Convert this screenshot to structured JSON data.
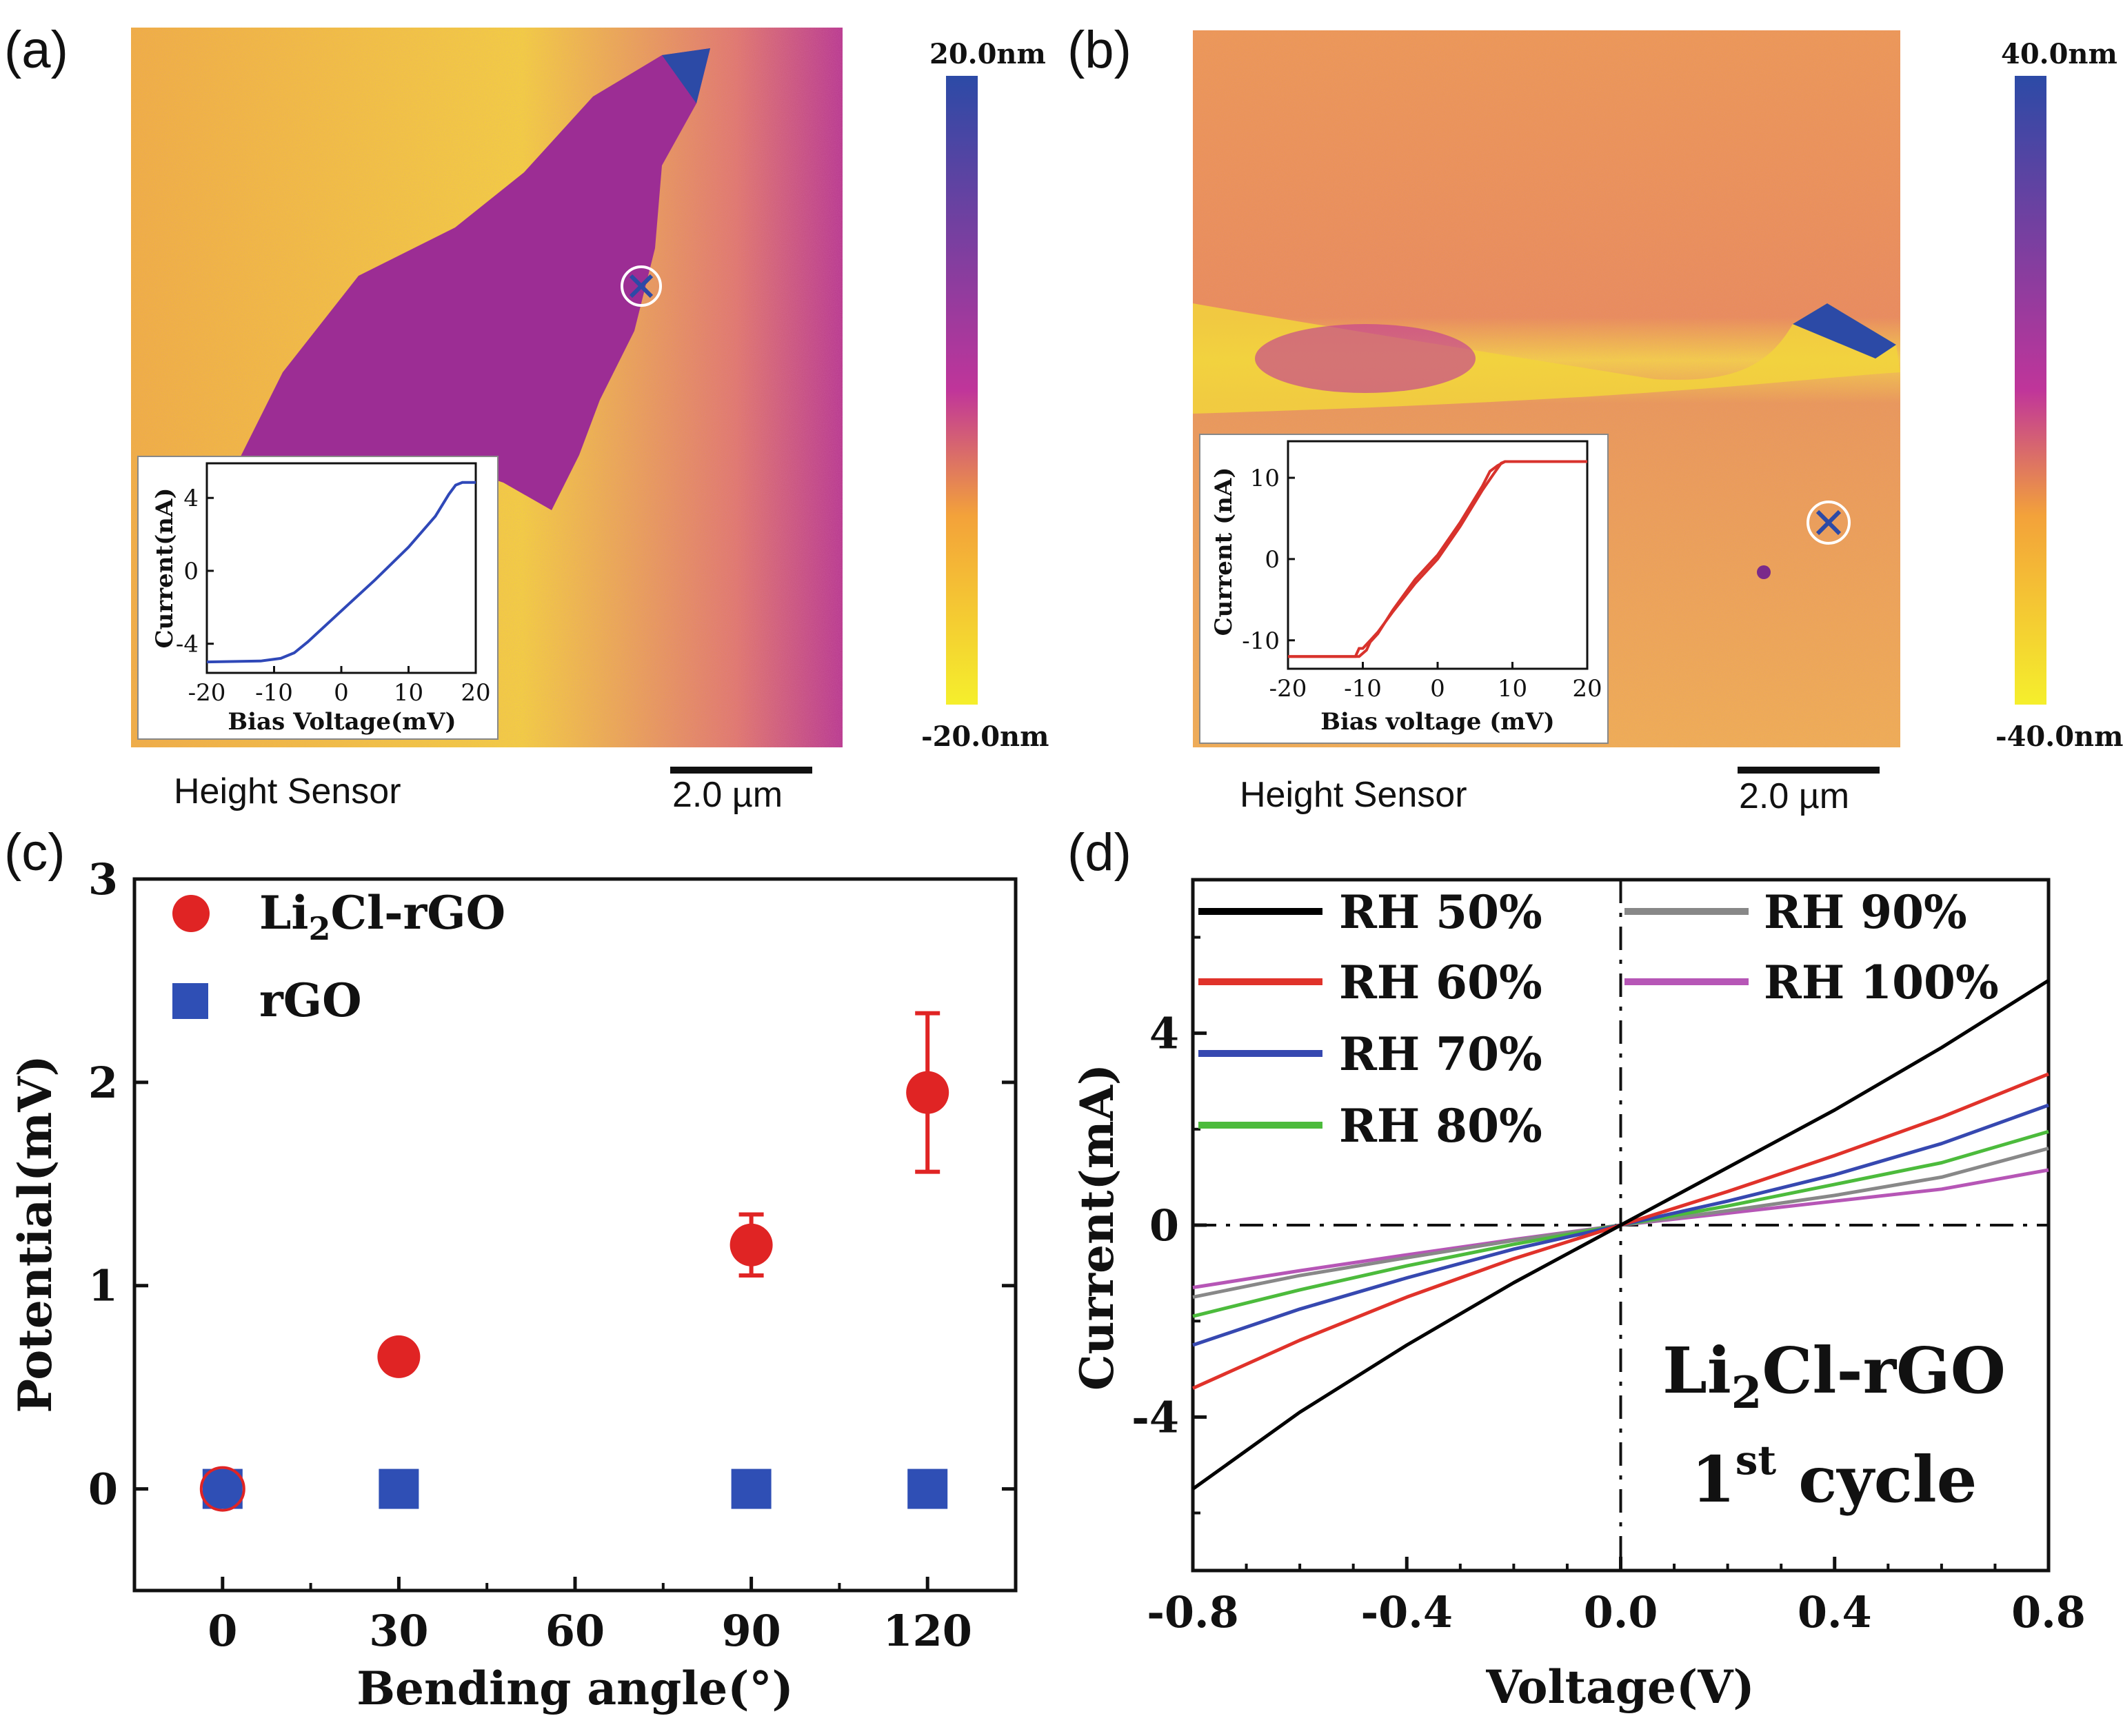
{
  "panels": {
    "a": {
      "label": "(a)",
      "caption": "Height Sensor",
      "scale_bar": "2.0 µm",
      "colorbar": {
        "top": "20.0nm",
        "bottom": "-20.0nm",
        "colors": [
          "#2c4aa6",
          "#c0359a",
          "#f3a23a",
          "#f5ef2c"
        ]
      },
      "inset": {
        "xlabel": "Bias Voltage(mV)",
        "ylabel": "Current(nA)",
        "xticks": [
          "-20",
          "-10",
          "0",
          "10",
          "20"
        ],
        "yticks": [
          "4",
          "0",
          "-4"
        ],
        "color": "#2f48b8"
      }
    },
    "b": {
      "label": "(b)",
      "caption": "Height Sensor",
      "scale_bar": "2.0 µm",
      "colorbar": {
        "top": "40.0nm",
        "bottom": "-40.0nm",
        "colors": [
          "#2c4aa6",
          "#c0359a",
          "#f3a23a",
          "#f5ef2c"
        ]
      },
      "inset": {
        "xlabel": "Bias voltage (mV)",
        "ylabel": "Current (nA)",
        "xticks": [
          "-20",
          "-10",
          "0",
          "10",
          "20"
        ],
        "yticks": [
          "10",
          "0",
          "-10"
        ],
        "color": "#d8322c"
      }
    },
    "c": {
      "label": "(c)"
    },
    "d": {
      "label": "(d)"
    }
  },
  "chart_data": [
    {
      "id": "a-inset",
      "type": "line",
      "title": "",
      "xlabel": "Bias Voltage(mV)",
      "ylabel": "Current(nA)",
      "xlim": [
        -20,
        20
      ],
      "ylim": [
        -5.6,
        5.9
      ],
      "series": [
        {
          "name": "I-V",
          "x": [
            -20,
            -12,
            -9,
            -7,
            -5,
            0,
            5,
            10,
            14,
            16,
            17,
            18,
            20
          ],
          "y": [
            -5.0,
            -4.95,
            -4.8,
            -4.5,
            -3.9,
            -2.2,
            -0.5,
            1.3,
            3.0,
            4.2,
            4.7,
            4.85,
            4.85
          ]
        }
      ]
    },
    {
      "id": "b-inset",
      "type": "line",
      "title": "",
      "xlabel": "Bias voltage (mV)",
      "ylabel": "Current (nA)",
      "xlim": [
        -20,
        20
      ],
      "ylim": [
        -13.5,
        14.5
      ],
      "series": [
        {
          "name": "I-V forward",
          "x": [
            -20,
            -11,
            -10.5,
            -10,
            -9,
            -8,
            -6,
            -3,
            0,
            3,
            6,
            7.5,
            8.5,
            9,
            20
          ],
          "y": [
            -12,
            -12,
            -11,
            -11,
            -10,
            -9,
            -6.5,
            -3,
            0,
            4,
            8.5,
            10.5,
            11.8,
            12,
            12
          ]
        },
        {
          "name": "I-V reverse",
          "x": [
            -20,
            -10.5,
            -9.5,
            -9,
            -8,
            -6,
            -3,
            0,
            3,
            6,
            7,
            8,
            9,
            20
          ],
          "y": [
            -12,
            -12,
            -11.2,
            -10.2,
            -9.2,
            -6.3,
            -2.5,
            0.5,
            4.5,
            9,
            10.8,
            11.5,
            12,
            12
          ]
        }
      ]
    },
    {
      "id": "c",
      "type": "scatter",
      "title": "",
      "xlabel": "Bending angle(°)",
      "ylabel": "Potential(mV)",
      "xlim": [
        -15,
        135
      ],
      "ylim": [
        -0.5,
        3
      ],
      "xticks": [
        0,
        30,
        60,
        90,
        120
      ],
      "yticks": [
        0,
        1,
        2,
        3
      ],
      "series": [
        {
          "name": "Li",
          "sub": "2",
          "name_suffix": "Cl-rGO",
          "marker": "circle",
          "color": "#e02424",
          "x": [
            0,
            30,
            90,
            120
          ],
          "y": [
            0,
            0.65,
            1.2,
            1.95
          ],
          "err": [
            0,
            0.05,
            0.15,
            0.39
          ]
        },
        {
          "name": "rGO",
          "marker": "square",
          "color": "#2f4fb5",
          "x": [
            0,
            30,
            90,
            120
          ],
          "y": [
            0,
            0,
            0,
            0
          ]
        }
      ]
    },
    {
      "id": "d",
      "type": "line",
      "title": "",
      "xlabel": "Voltage(V)",
      "ylabel": "Current(mA)",
      "xlim": [
        -0.8,
        0.8
      ],
      "ylim": [
        -7.2,
        7.2
      ],
      "xticks": [
        -0.8,
        -0.4,
        0.0,
        0.4,
        0.8
      ],
      "xticklabels": [
        "-0.8",
        "-0.4",
        "0.0",
        "0.4",
        "0.8"
      ],
      "yticks": [
        -4,
        0,
        4
      ],
      "annotation": {
        "line1_pre": "Li",
        "line1_sub": "2",
        "line1_post": "Cl-rGO",
        "line2_pre": "1",
        "line2_sup": "st",
        "line2_post": " cycle"
      },
      "series": [
        {
          "name": "RH 50%",
          "color": "#000000",
          "x": [
            -0.8,
            -0.6,
            -0.4,
            -0.2,
            0,
            0.2,
            0.4,
            0.6,
            0.8
          ],
          "y": [
            -5.5,
            -3.9,
            -2.5,
            -1.2,
            0,
            1.2,
            2.4,
            3.7,
            5.1
          ]
        },
        {
          "name": "RH 60%",
          "color": "#e0322a",
          "x": [
            -0.8,
            -0.6,
            -0.4,
            -0.2,
            0,
            0.2,
            0.4,
            0.6,
            0.8
          ],
          "y": [
            -3.4,
            -2.4,
            -1.5,
            -0.7,
            0,
            0.7,
            1.45,
            2.25,
            3.15
          ]
        },
        {
          "name": "RH 70%",
          "color": "#3648b0",
          "x": [
            -0.8,
            -0.6,
            -0.4,
            -0.2,
            0,
            0.2,
            0.4,
            0.6,
            0.8
          ],
          "y": [
            -2.5,
            -1.75,
            -1.1,
            -0.5,
            0,
            0.5,
            1.05,
            1.7,
            2.5
          ]
        },
        {
          "name": "RH 80%",
          "color": "#4cbb3c",
          "x": [
            -0.8,
            -0.6,
            -0.4,
            -0.2,
            0,
            0.2,
            0.4,
            0.6,
            0.8
          ],
          "y": [
            -1.9,
            -1.35,
            -0.85,
            -0.4,
            0,
            0.4,
            0.85,
            1.3,
            1.95
          ]
        },
        {
          "name": "RH 90%",
          "color": "#888888",
          "x": [
            -0.8,
            -0.6,
            -0.4,
            -0.2,
            0,
            0.2,
            0.4,
            0.6,
            0.8
          ],
          "y": [
            -1.5,
            -1.05,
            -0.68,
            -0.32,
            0,
            0.3,
            0.62,
            1.0,
            1.6
          ]
        },
        {
          "name": "RH 100%",
          "color": "#b656b6",
          "x": [
            -0.8,
            -0.6,
            -0.4,
            -0.2,
            0,
            0.2,
            0.4,
            0.6,
            0.8
          ],
          "y": [
            -1.3,
            -0.95,
            -0.62,
            -0.3,
            0,
            0.25,
            0.5,
            0.75,
            1.15
          ]
        }
      ]
    }
  ]
}
